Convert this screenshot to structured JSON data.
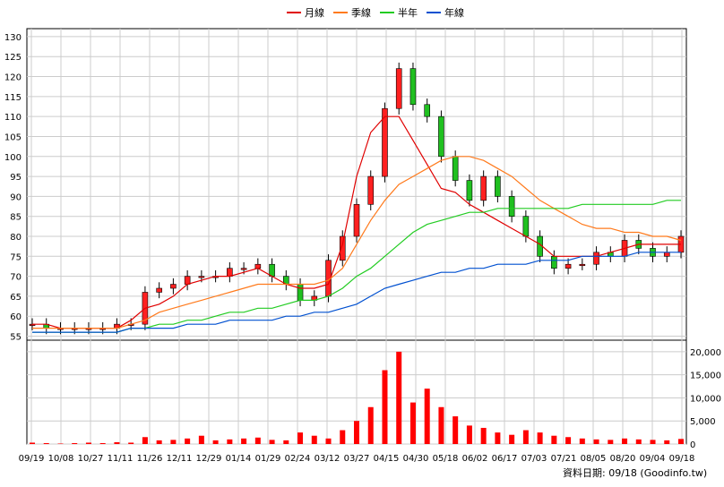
{
  "legend": [
    {
      "name": "月線",
      "color": "#e00000"
    },
    {
      "name": "季線",
      "color": "#ff7a1c"
    },
    {
      "name": "半年",
      "color": "#22cc22"
    },
    {
      "name": "年線",
      "color": "#0050d0"
    }
  ],
  "source_text": "資料日期: 09/18  (Goodinfo.tw)",
  "chart_data": [
    {
      "type": "candlestick",
      "x_ticks": [
        "09/19",
        "10/08",
        "10/27",
        "11/11",
        "11/26",
        "12/11",
        "12/29",
        "01/14",
        "01/29",
        "02/24",
        "03/12",
        "03/27",
        "04/15",
        "04/30",
        "05/18",
        "06/02",
        "06/17",
        "07/03",
        "07/21",
        "08/05",
        "08/20",
        "09/04",
        "09/18"
      ],
      "y_ticks": [
        55,
        60,
        65,
        70,
        75,
        80,
        85,
        90,
        95,
        100,
        105,
        110,
        115,
        120,
        125,
        130
      ],
      "ylim": [
        54,
        132
      ],
      "grid": true,
      "legend_position": "top",
      "close_series_approx": [
        58,
        57,
        57,
        57,
        57,
        57,
        58,
        58,
        66,
        67,
        68,
        70,
        70,
        70,
        72,
        72,
        73,
        70,
        68,
        64,
        65,
        74,
        80,
        88,
        95,
        112,
        122,
        113,
        110,
        100,
        94,
        89,
        95,
        90,
        85,
        80,
        75,
        72,
        73,
        73,
        76,
        75,
        79,
        77,
        75,
        76,
        80
      ],
      "moving_averages": {
        "月線": [
          58,
          58,
          57,
          57,
          57,
          57,
          57,
          59,
          62,
          63,
          65,
          68,
          69,
          70,
          70,
          71,
          72,
          70,
          68,
          67,
          67,
          68,
          78,
          95,
          106,
          110,
          110,
          104,
          98,
          92,
          91,
          88,
          86,
          84,
          82,
          80,
          78,
          75,
          75,
          75,
          75,
          76,
          77,
          78,
          78,
          78,
          78
        ],
        "季線": [
          57,
          57,
          57,
          57,
          57,
          57,
          57,
          58,
          59,
          61,
          62,
          63,
          64,
          65,
          66,
          67,
          68,
          68,
          68,
          68,
          68,
          69,
          72,
          78,
          84,
          89,
          93,
          95,
          97,
          99,
          100,
          100,
          99,
          97,
          95,
          92,
          89,
          87,
          85,
          83,
          82,
          82,
          81,
          81,
          80,
          80,
          79
        ],
        "半年": [
          56,
          56,
          56,
          56,
          56,
          56,
          56,
          57,
          57,
          58,
          58,
          59,
          59,
          60,
          61,
          61,
          62,
          62,
          63,
          64,
          64,
          65,
          67,
          70,
          72,
          75,
          78,
          81,
          83,
          84,
          85,
          86,
          86,
          87,
          87,
          87,
          87,
          87,
          87,
          88,
          88,
          88,
          88,
          88,
          88,
          89,
          89
        ],
        "年線": [
          56,
          56,
          56,
          56,
          56,
          56,
          56,
          57,
          57,
          57,
          57,
          58,
          58,
          58,
          59,
          59,
          59,
          59,
          60,
          60,
          61,
          61,
          62,
          63,
          65,
          67,
          68,
          69,
          70,
          71,
          71,
          72,
          72,
          73,
          73,
          73,
          74,
          74,
          74,
          75,
          75,
          75,
          75,
          76,
          76,
          76,
          76
        ]
      }
    },
    {
      "type": "bar",
      "y_ticks": [
        0,
        5000,
        10000,
        15000,
        20000
      ],
      "y_tick_labels": [
        "0",
        "5,000",
        "10,000",
        "15,000",
        "20,000"
      ],
      "ylim": [
        0,
        22500
      ],
      "volume_series_approx": [
        300,
        200,
        100,
        200,
        300,
        200,
        400,
        300,
        1500,
        800,
        900,
        1200,
        1800,
        800,
        1000,
        1200,
        1400,
        900,
        800,
        2500,
        1800,
        1200,
        3000,
        5000,
        8000,
        16000,
        20000,
        9000,
        12000,
        8000,
        6000,
        4000,
        3500,
        2500,
        2000,
        3000,
        2500,
        1800,
        1500,
        1200,
        1000,
        900,
        1200,
        1000,
        900,
        800,
        1100
      ]
    }
  ]
}
